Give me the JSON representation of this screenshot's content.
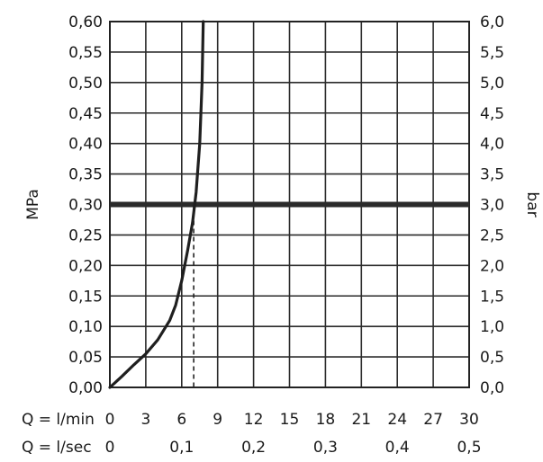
{
  "chart_data": {
    "type": "line",
    "title": "",
    "ylabel_left": "MPa",
    "ylabel_right": "bar",
    "x_row1_label": "Q = l/min",
    "x_row2_label": "Q = l/sec",
    "xlim": [
      0,
      30
    ],
    "ylim": [
      0,
      0.6
    ],
    "x_ticks_lmin": [
      {
        "value": 0,
        "label": "0"
      },
      {
        "value": 3,
        "label": "3"
      },
      {
        "value": 6,
        "label": "6"
      },
      {
        "value": 9,
        "label": "9"
      },
      {
        "value": 12,
        "label": "12"
      },
      {
        "value": 15,
        "label": "15"
      },
      {
        "value": 18,
        "label": "18"
      },
      {
        "value": 21,
        "label": "21"
      },
      {
        "value": 24,
        "label": "24"
      },
      {
        "value": 27,
        "label": "27"
      },
      {
        "value": 30,
        "label": "30"
      }
    ],
    "x_ticks_lsec": [
      {
        "value": 0,
        "label": "0"
      },
      {
        "value": 6,
        "label": "0,1"
      },
      {
        "value": 12,
        "label": "0,2"
      },
      {
        "value": 18,
        "label": "0,3"
      },
      {
        "value": 24,
        "label": "0,4"
      },
      {
        "value": 30,
        "label": "0,5"
      }
    ],
    "y_ticks_left": [
      {
        "value": 0.0,
        "label": "0,00"
      },
      {
        "value": 0.05,
        "label": "0,05"
      },
      {
        "value": 0.1,
        "label": "0,10"
      },
      {
        "value": 0.15,
        "label": "0,15"
      },
      {
        "value": 0.2,
        "label": "0,20"
      },
      {
        "value": 0.25,
        "label": "0,25"
      },
      {
        "value": 0.3,
        "label": "0,30"
      },
      {
        "value": 0.35,
        "label": "0,35"
      },
      {
        "value": 0.4,
        "label": "0,40"
      },
      {
        "value": 0.45,
        "label": "0,45"
      },
      {
        "value": 0.5,
        "label": "0,50"
      },
      {
        "value": 0.55,
        "label": "0,55"
      },
      {
        "value": 0.6,
        "label": "0,60"
      }
    ],
    "y_ticks_right": [
      {
        "value": 0.0,
        "label": "0,0"
      },
      {
        "value": 0.05,
        "label": "0,5"
      },
      {
        "value": 0.1,
        "label": "1,0"
      },
      {
        "value": 0.15,
        "label": "1,5"
      },
      {
        "value": 0.2,
        "label": "2,0"
      },
      {
        "value": 0.25,
        "label": "2,5"
      },
      {
        "value": 0.3,
        "label": "3,0"
      },
      {
        "value": 0.35,
        "label": "3,5"
      },
      {
        "value": 0.4,
        "label": "4,0"
      },
      {
        "value": 0.45,
        "label": "4,5"
      },
      {
        "value": 0.5,
        "label": "5,0"
      },
      {
        "value": 0.55,
        "label": "5,5"
      },
      {
        "value": 0.6,
        "label": "6,0"
      }
    ],
    "grid": true,
    "series": [
      {
        "x": [
          0,
          1,
          2,
          3,
          4,
          5,
          5.5,
          6,
          6.5,
          6.9,
          7.2,
          7.5,
          7.7,
          7.8
        ],
        "values": [
          0,
          0.018,
          0.037,
          0.055,
          0.078,
          0.11,
          0.135,
          0.175,
          0.225,
          0.27,
          0.32,
          0.4,
          0.5,
          0.6
        ],
        "color": "#1f1f1f"
      }
    ],
    "reference_line": {
      "y": 0.3,
      "color": "#2b2b2b"
    },
    "marker": {
      "x": 7,
      "y": 0.3,
      "style": "dashed"
    }
  }
}
